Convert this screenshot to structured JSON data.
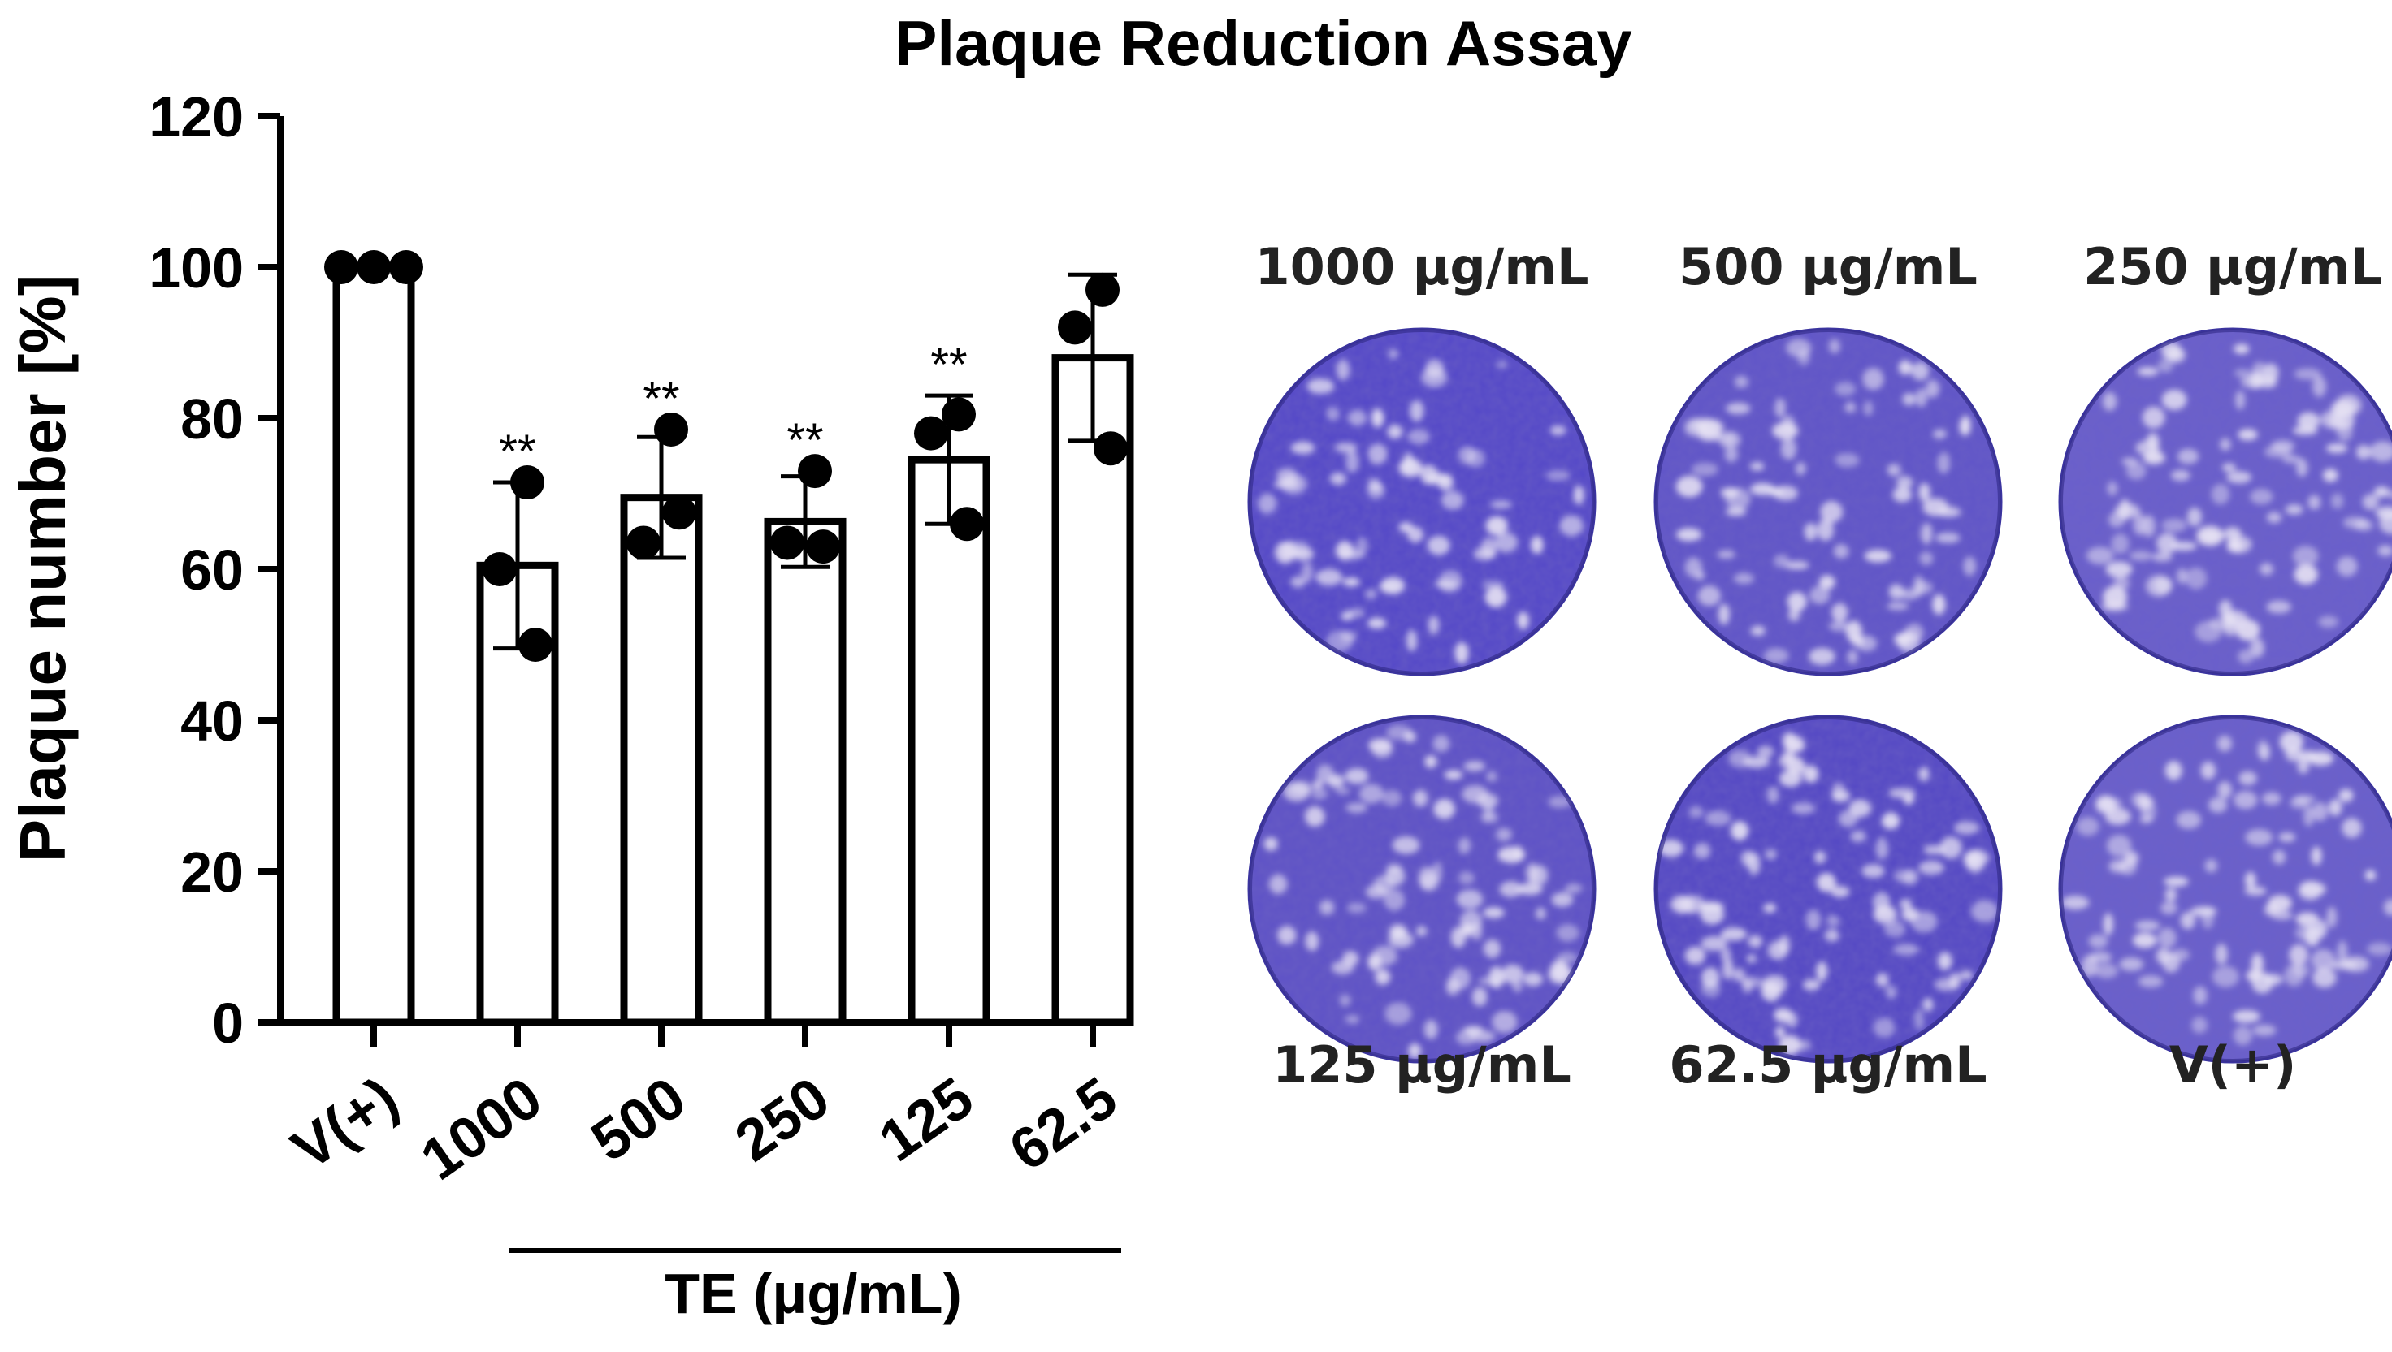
{
  "chart_data": {
    "type": "bar",
    "title": "Plaque Reduction Assay",
    "ylabel": "Plaque number [%]",
    "xlabel": "TE (μg/mL)",
    "ylim": [
      0,
      120
    ],
    "yticks": [
      0,
      20,
      40,
      60,
      80,
      100,
      120
    ],
    "grid": false,
    "legend": "none",
    "categories": [
      "V(+)",
      "1000",
      "500",
      "250",
      "125",
      "62.5"
    ],
    "values": [
      100,
      60.5,
      69.5,
      66.3,
      74.5,
      88
    ],
    "error_sd": [
      0,
      11,
      8,
      6,
      8.5,
      11
    ],
    "points": [
      [
        100,
        100,
        100
      ],
      [
        71.5,
        60,
        50
      ],
      [
        78.5,
        63.5,
        67.5
      ],
      [
        73,
        63.5,
        63
      ],
      [
        80.5,
        78,
        66
      ],
      [
        97,
        92,
        76
      ]
    ],
    "significance": [
      "",
      "**",
      "**",
      "**",
      "**",
      ""
    ],
    "bracket_range": [
      1,
      5
    ]
  },
  "wells": [
    {
      "label": "1000 μg/mL",
      "stain_color": "#5448c8"
    },
    {
      "label": "500 μg/mL",
      "stain_color": "#6055c8"
    },
    {
      "label": "250 μg/mL",
      "stain_color": "#6a5fcc"
    },
    {
      "label": "125 μg/mL",
      "stain_color": "#5e52c6"
    },
    {
      "label": "62.5 μg/mL",
      "stain_color": "#5448c4"
    },
    {
      "label": "V(+)",
      "stain_color": "#6a60cc"
    }
  ]
}
